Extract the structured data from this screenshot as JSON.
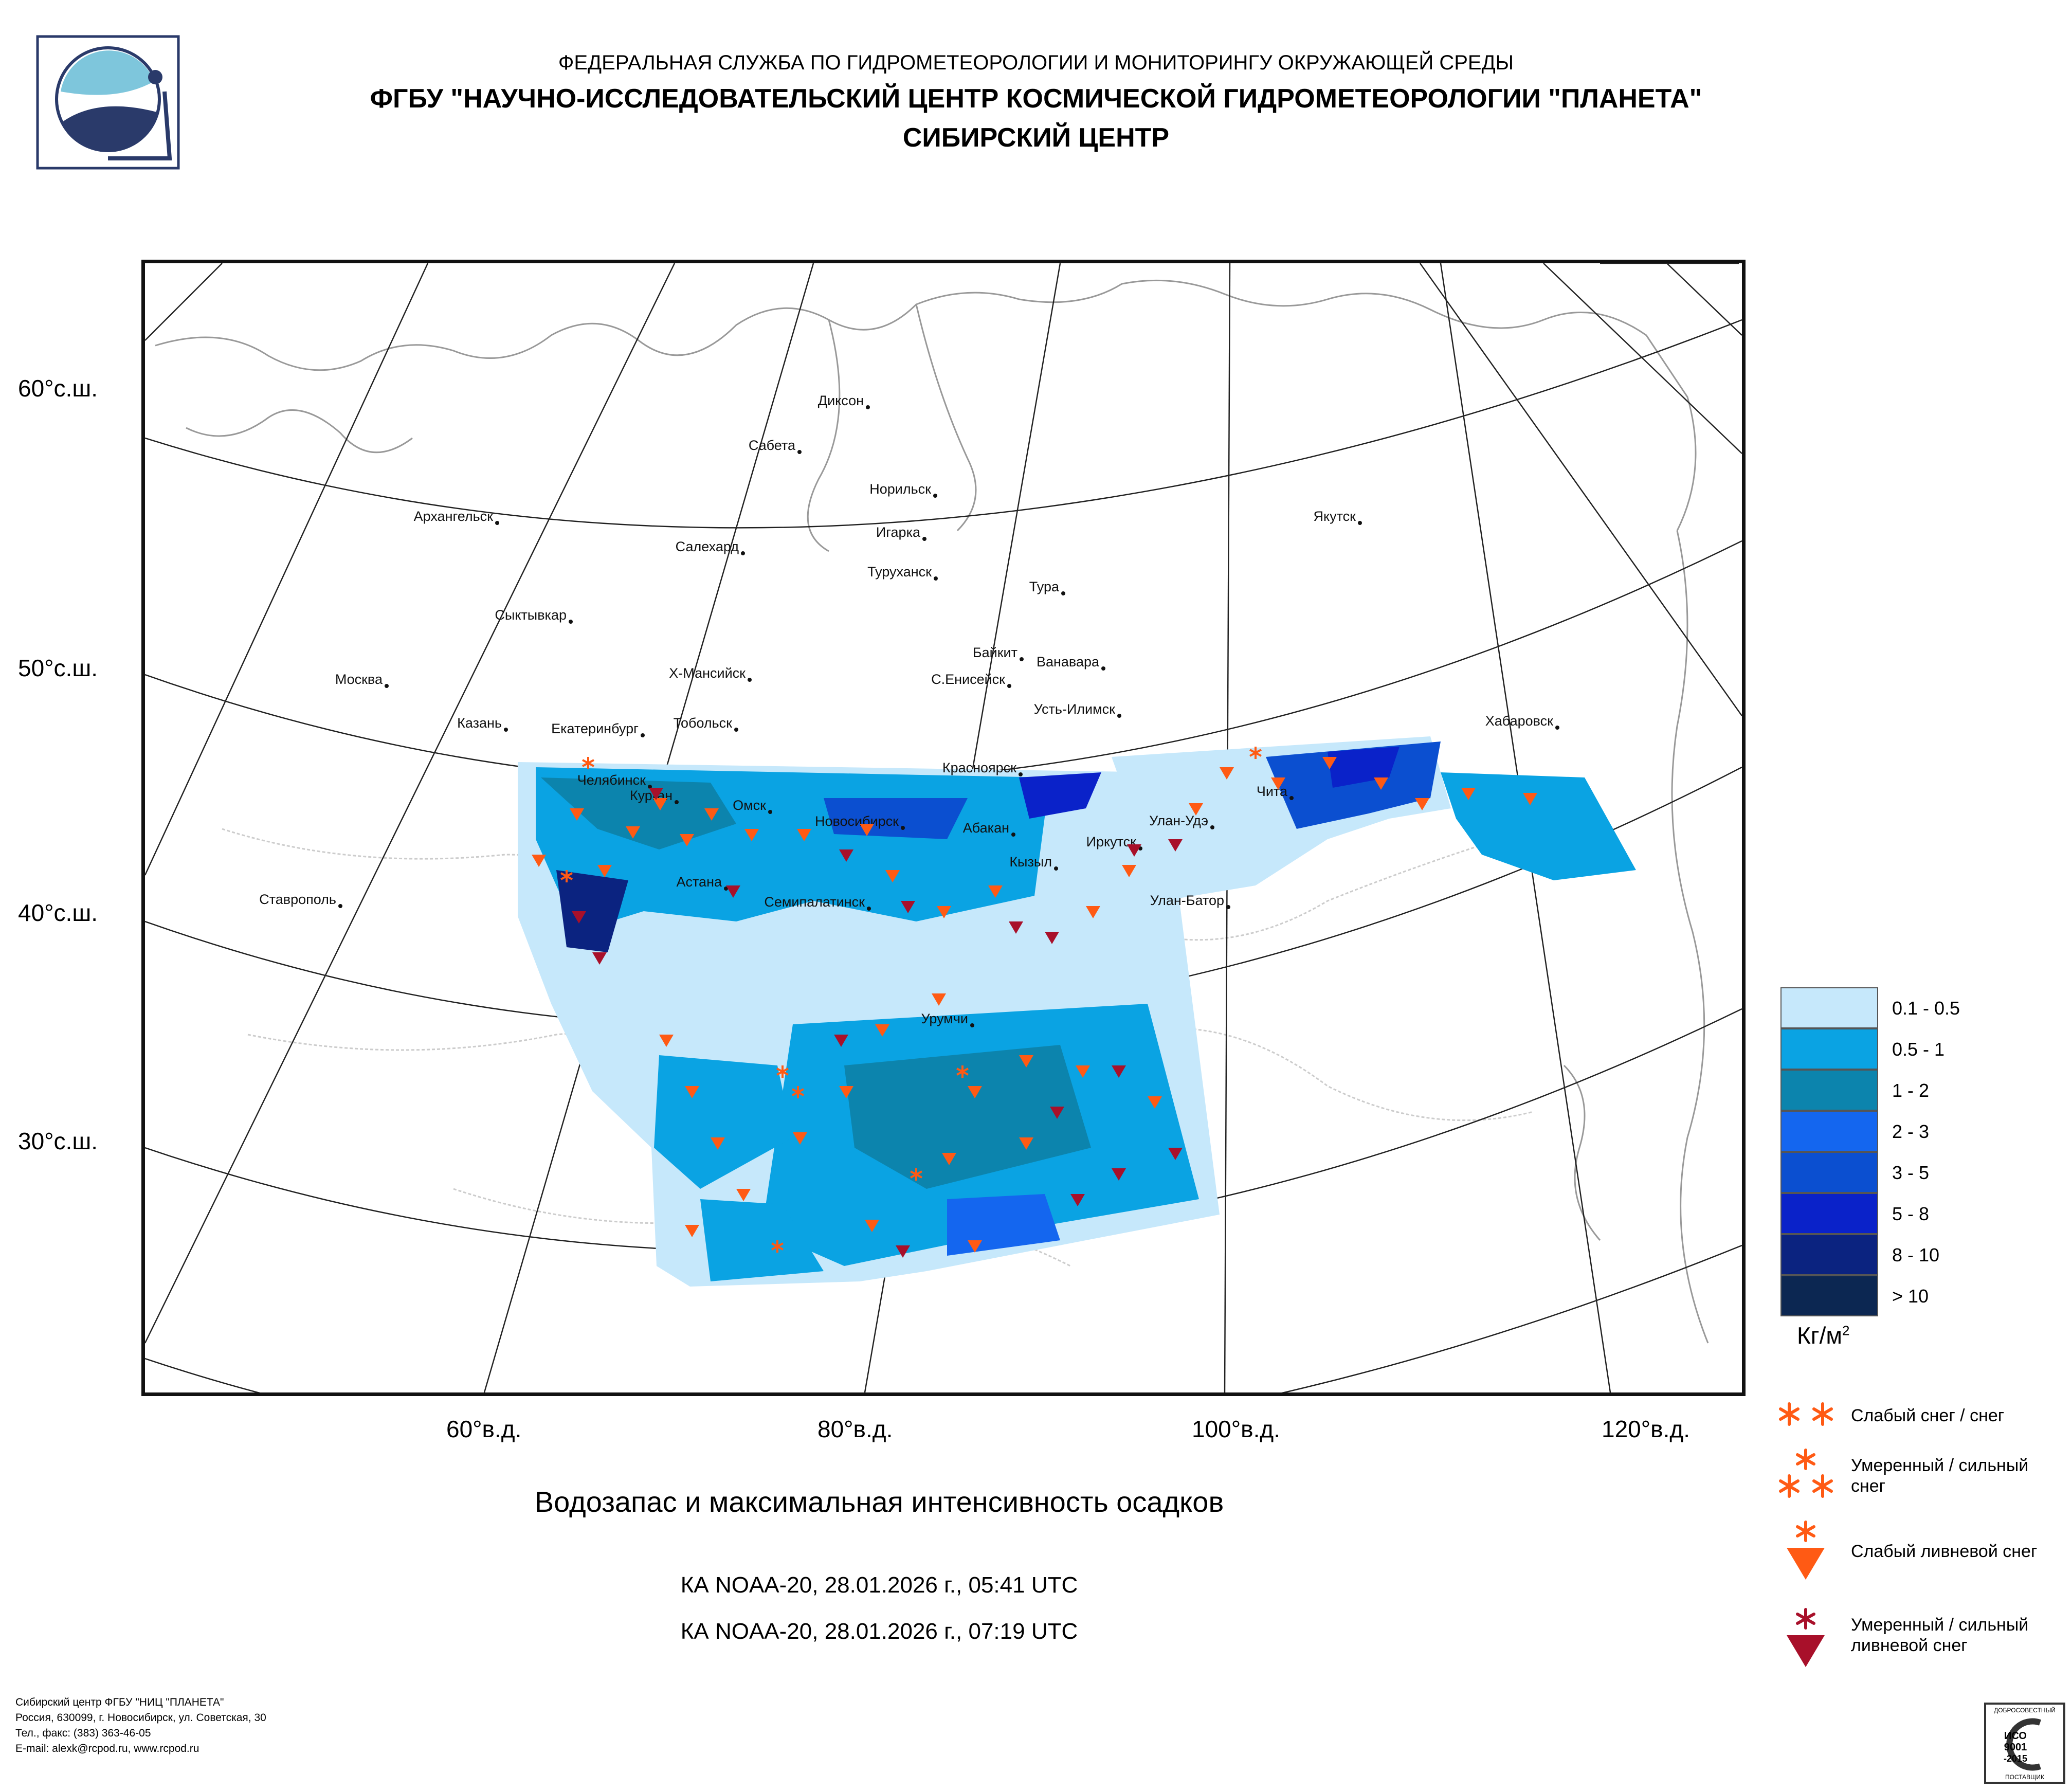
{
  "header": {
    "line1": "ФЕДЕРАЛЬНАЯ СЛУЖБА ПО ГИДРОМЕТЕОРОЛОГИИ И МОНИТОРИНГУ ОКРУЖАЮЩЕЙ СРЕДЫ",
    "line2": "ФГБУ \"НАУЧНО-ИССЛЕДОВАТЕЛЬСКИЙ ЦЕНТР КОСМИЧЕСКОЙ ГИДРОМЕТЕОРОЛОГИИ \"ПЛАНЕТА\"",
    "line3": "СИБИРСКИЙ ЦЕНТР"
  },
  "logo": {
    "icon": "planeta-logo-icon"
  },
  "map": {
    "lat_labels": [
      "60°с.ш.",
      "50°с.ш.",
      "40°с.ш.",
      "30°с.ш."
    ],
    "lon_labels": [
      "60°в.д.",
      "80°в.д.",
      "100°в.д.",
      "120°в.д."
    ],
    "cities": [
      "Диксон",
      "Сабета",
      "Норильск",
      "Архангельск",
      "Игарка",
      "Салехард",
      "Туруханск",
      "Якутск",
      "Тура",
      "Сыктывкар",
      "Байкит",
      "Ванавара",
      "Х-Мансийск",
      "С.Енисейск",
      "Москва",
      "Усть-Илимск",
      "Казань",
      "Тобольск",
      "Екатеринбург",
      "Хабаровск",
      "Красноярск",
      "Челябинск",
      "Курган",
      "Омск",
      "Новосибирск",
      "Абакан",
      "Улан-Удэ",
      "Чита",
      "Иркутск",
      "Кызыл",
      "Астана",
      "Ставрополь",
      "Семипалатинск",
      "Улан-Батор",
      "Урумчи"
    ]
  },
  "legend": {
    "classes": [
      {
        "label": "0.1 - 0.5",
        "color": "#c6e8fb"
      },
      {
        "label": "0.5 - 1",
        "color": "#0aa3e3"
      },
      {
        "label": "1 - 2",
        "color": "#0c84ad"
      },
      {
        "label": "2 - 3",
        "color": "#1466ef"
      },
      {
        "label": "3 - 5",
        "color": "#0b4fd0"
      },
      {
        "label": "5 - 8",
        "color": "#0a22c9"
      },
      {
        "label": "8 - 10",
        "color": "#0b2380"
      },
      {
        "label": "> 10",
        "color": "#0c2752"
      }
    ],
    "unit": "Кг/м",
    "unit_sup": "2"
  },
  "symbols": {
    "light_snow": "Слабый снег / снег",
    "moderate_snow": "Умеренный / сильный снег",
    "light_shower_snow": "Слабый ливневой снег",
    "moderate_shower_snow": "Умеренный / сильный ливневой снег",
    "colors": {
      "orange": "#ff5a14",
      "darkred": "#a8102a"
    }
  },
  "caption": {
    "title": "Водозапас и максимальная интенсивность осадков",
    "pass1": "КА NOAA-20, 28.01.2026 г., 05:41 UTC",
    "pass2": "КА NOAA-20, 28.01.2026 г., 07:19 UTC"
  },
  "footer": {
    "line1": "Сибирский центр ФГБУ \"НИЦ \"ПЛАНЕТА\"",
    "line2": "Россия, 630099, г. Новосибирск, ул. Советская, 30",
    "line3": "Тел., факс: (383) 363-46-05",
    "line4": "E-mail: alexk@rcpod.ru, www.rcpod.ru"
  },
  "cert": {
    "top": "ДОБРОСОВЕСТНЫЙ",
    "l1": "ИСО",
    "l2": "9001",
    "l3": "-2015",
    "bottom": "ПОСТАВЩИК"
  }
}
